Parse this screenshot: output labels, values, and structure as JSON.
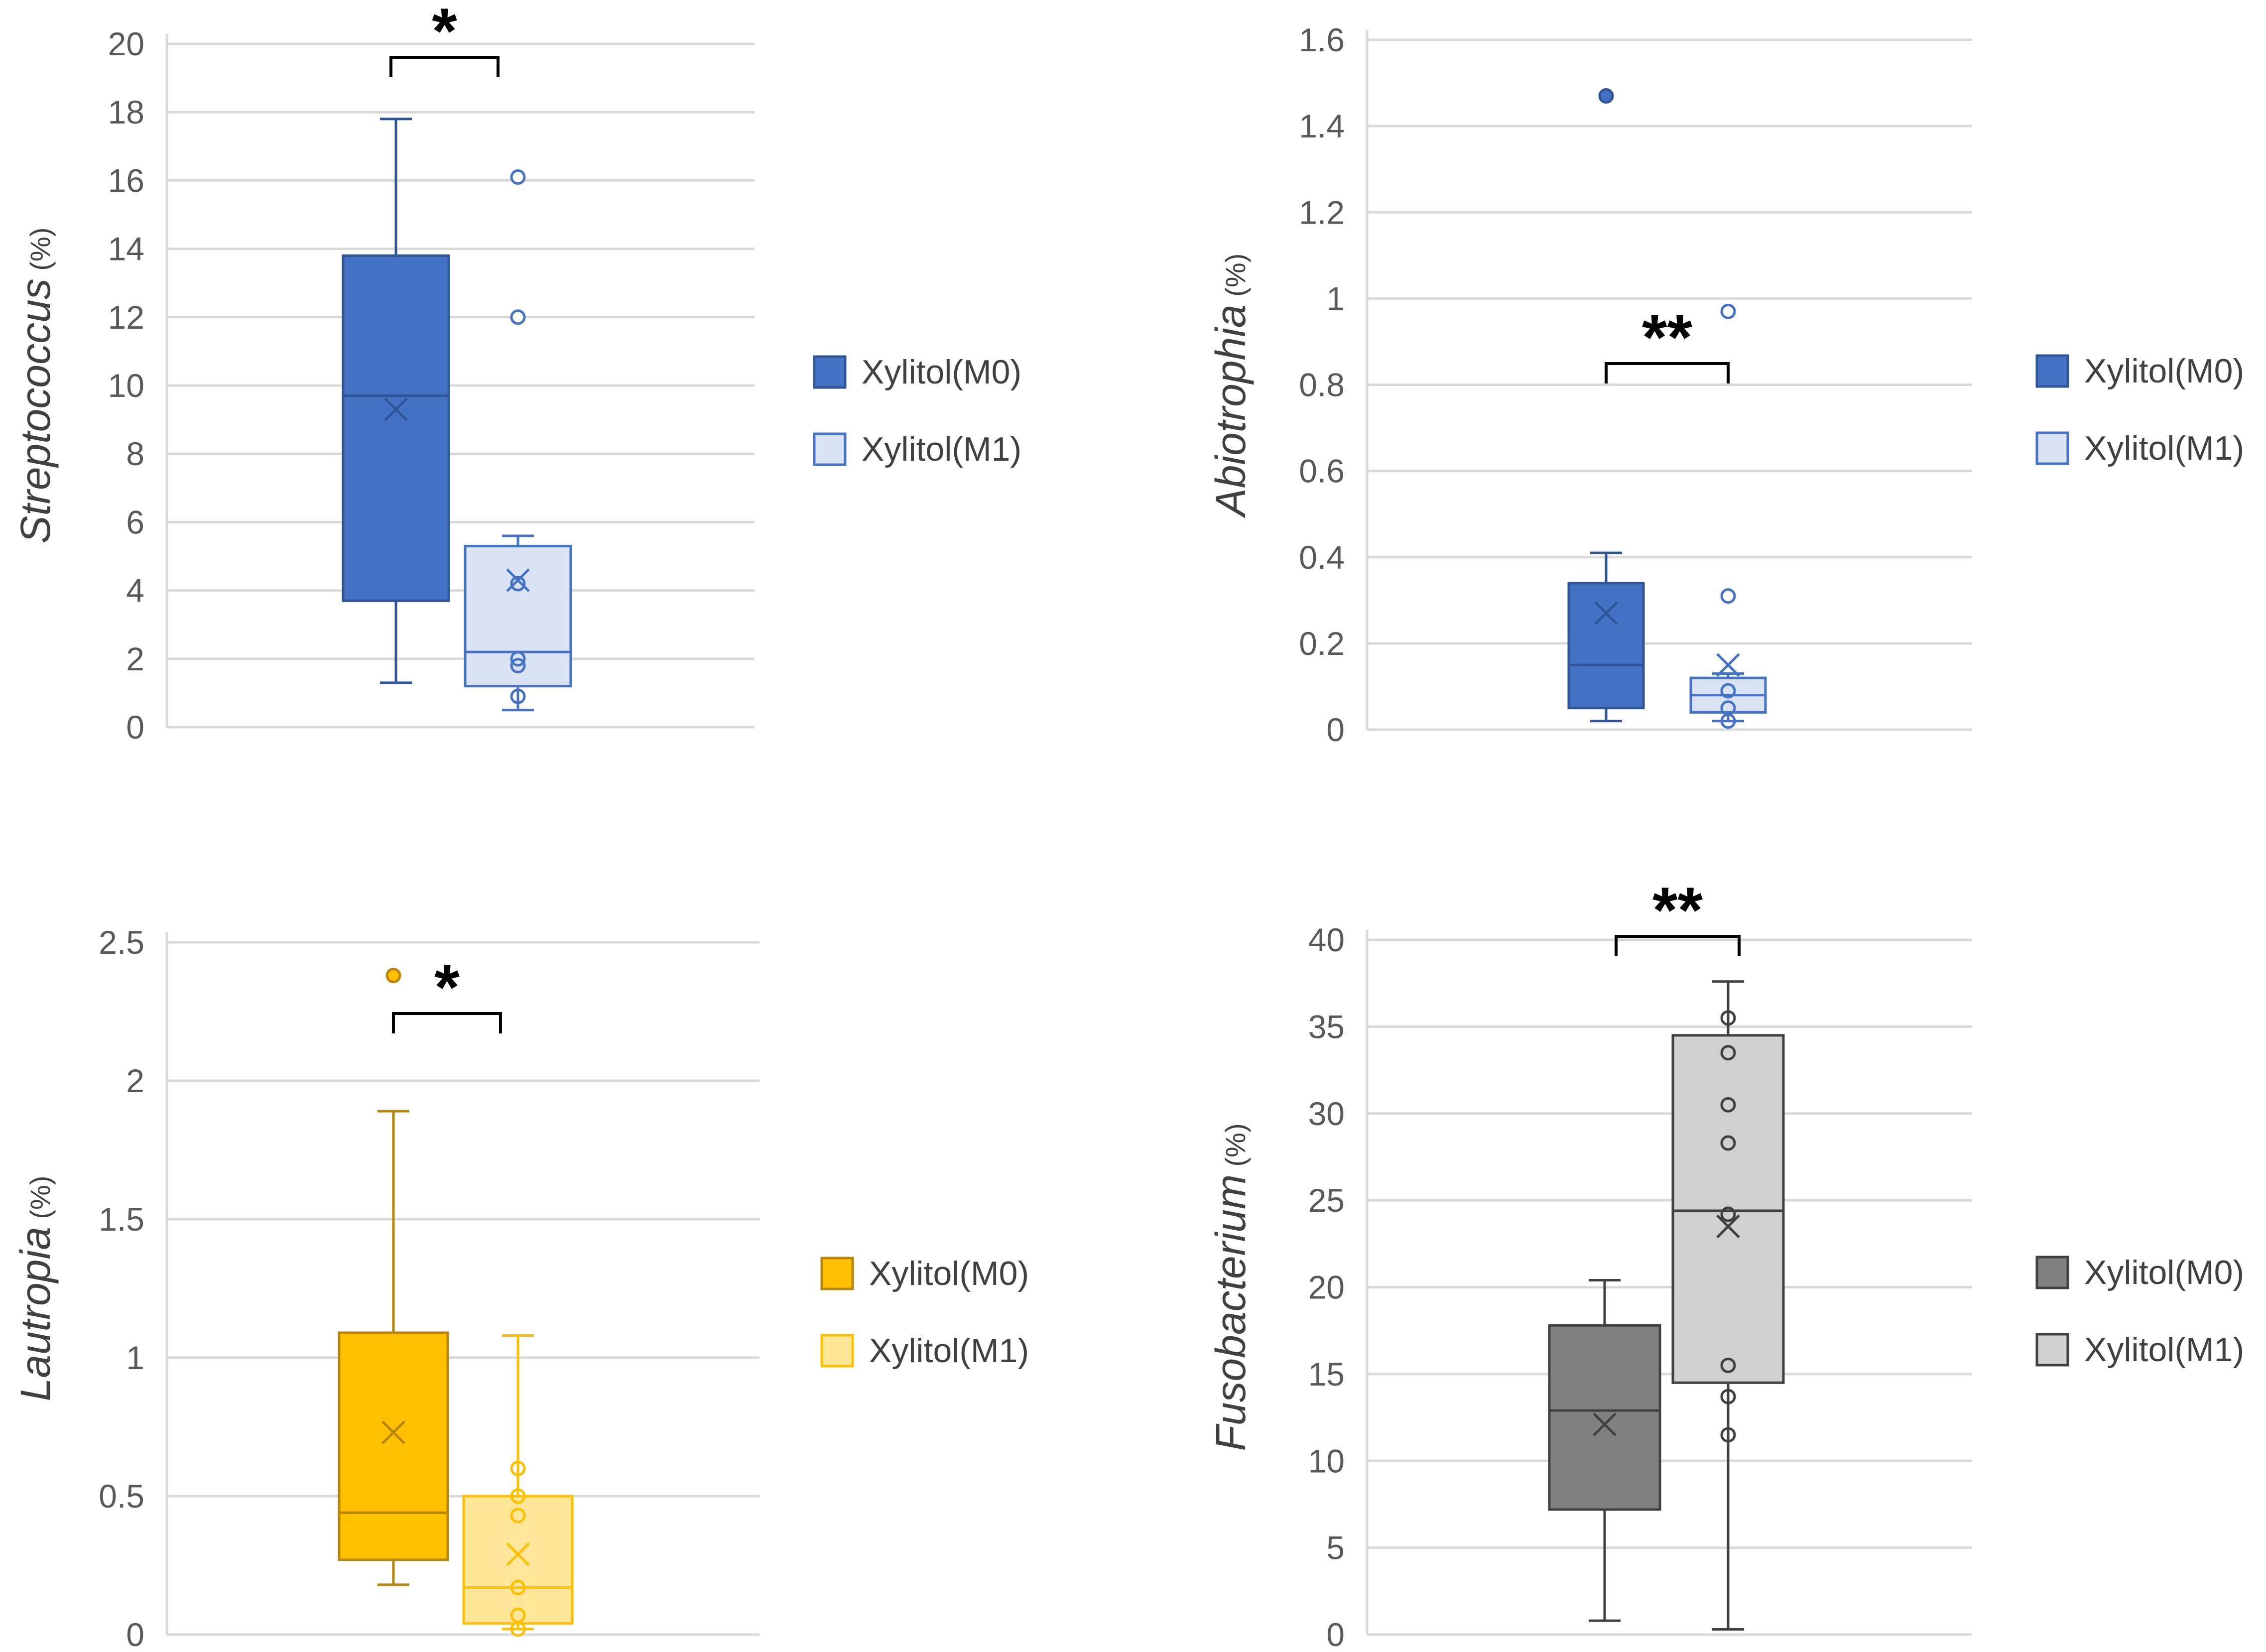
{
  "chart_data": [
    {
      "type": "box",
      "ylabel_genus": "Streptococcus",
      "ylabel_unit": "(%)",
      "ylim": [
        0,
        20
      ],
      "yticks": [
        0,
        2,
        4,
        6,
        8,
        10,
        12,
        14,
        16,
        18,
        20
      ],
      "ytick_labels": [
        "0",
        "2",
        "4",
        "6",
        "8",
        "10",
        "12",
        "14",
        "16",
        "18",
        "20"
      ],
      "colors": {
        "M0_fill": "#4472C4",
        "M0_line": "#2F5597",
        "M1_fill": "#DAE3F3",
        "M1_line": "#4472C4"
      },
      "series": [
        {
          "name": "Xylitol(M0)",
          "min": 1.3,
          "q1": 3.7,
          "median": 9.7,
          "q3": 13.8,
          "max": 17.8,
          "mean": 9.3,
          "outliers": []
        },
        {
          "name": "Xylitol(M1)",
          "min": 0.5,
          "q1": 1.2,
          "median": 2.2,
          "q3": 5.3,
          "max": 5.6,
          "mean": 4.3,
          "outliers": [
            16.1,
            12.0
          ],
          "points": [
            4.2,
            2.0,
            1.8,
            0.9
          ]
        }
      ],
      "significance": "*",
      "legend": [
        "Xylitol(M0)",
        "Xylitol(M1)"
      ],
      "legend_position": "right"
    },
    {
      "type": "box",
      "ylabel_genus": "Abiotrophia",
      "ylabel_unit": "(%)",
      "ylim": [
        0,
        1.6
      ],
      "yticks": [
        0,
        0.2,
        0.4,
        0.6,
        0.8,
        1.0,
        1.2,
        1.4,
        1.6
      ],
      "ytick_labels": [
        "0",
        "0.2",
        "0.4",
        "0.6",
        "0.8",
        "1",
        "1.2",
        "1.4",
        "1.6"
      ],
      "colors": {
        "M0_fill": "#4472C4",
        "M0_line": "#2F5597",
        "M1_fill": "#DAE3F3",
        "M1_line": "#4472C4"
      },
      "series": [
        {
          "name": "Xylitol(M0)",
          "min": 0.02,
          "q1": 0.05,
          "median": 0.15,
          "q3": 0.34,
          "max": 0.41,
          "mean": 0.27,
          "outliers": [
            1.47
          ]
        },
        {
          "name": "Xylitol(M1)",
          "min": 0.02,
          "q1": 0.04,
          "median": 0.08,
          "q3": 0.12,
          "max": 0.13,
          "mean": 0.15,
          "outliers": [
            0.97,
            0.31
          ],
          "points": [
            0.09,
            0.05,
            0.02
          ]
        }
      ],
      "significance": "**",
      "legend": [
        "Xylitol(M0)",
        "Xylitol(M1)"
      ],
      "legend_position": "right"
    },
    {
      "type": "box",
      "ylabel_genus": "Lautropia",
      "ylabel_unit": "(%)",
      "ylim": [
        0,
        2.5
      ],
      "yticks": [
        0,
        0.5,
        1.0,
        1.5,
        2.0,
        2.5
      ],
      "ytick_labels": [
        "0",
        "0.5",
        "1",
        "1.5",
        "2",
        "2.5"
      ],
      "colors": {
        "M0_fill": "#FFC000",
        "M0_line": "#B8860B",
        "M1_fill": "#FFE699",
        "M1_line": "#FFC000"
      },
      "series": [
        {
          "name": "Xylitol(M0)",
          "min": 0.18,
          "q1": 0.27,
          "median": 0.44,
          "q3": 1.09,
          "max": 1.89,
          "mean": 0.73,
          "outliers": [
            2.38
          ]
        },
        {
          "name": "Xylitol(M1)",
          "min": 0.02,
          "q1": 0.04,
          "median": 0.17,
          "q3": 0.5,
          "max": 1.08,
          "mean": 0.29,
          "outliers": [],
          "points": [
            0.6,
            0.5,
            0.43,
            0.17,
            0.07,
            0.02
          ]
        }
      ],
      "significance": "*",
      "legend": [
        "Xylitol(M0)",
        "Xylitol(M1)"
      ],
      "legend_position": "right"
    },
    {
      "type": "box",
      "ylabel_genus": "Fusobacterium",
      "ylabel_unit": "(%)",
      "ylim": [
        0,
        40
      ],
      "yticks": [
        0,
        5,
        10,
        15,
        20,
        25,
        30,
        35,
        40
      ],
      "ytick_labels": [
        "0",
        "5",
        "10",
        "15",
        "20",
        "25",
        "30",
        "35",
        "40"
      ],
      "colors": {
        "M0_fill": "#808080",
        "M0_line": "#404040",
        "M1_fill": "#D0D0D0",
        "M1_line": "#404040"
      },
      "series": [
        {
          "name": "Xylitol(M0)",
          "min": 0.8,
          "q1": 7.2,
          "median": 12.9,
          "q3": 17.8,
          "max": 20.4,
          "mean": 12.1,
          "outliers": []
        },
        {
          "name": "Xylitol(M1)",
          "min": 0.3,
          "q1": 14.5,
          "median": 24.4,
          "q3": 34.5,
          "max": 37.6,
          "mean": 23.5,
          "outliers": [],
          "points": [
            35.5,
            33.5,
            30.5,
            28.3,
            24.2,
            15.5,
            13.7,
            11.5
          ]
        }
      ],
      "significance": "**",
      "legend": [
        "Xylitol(M0)",
        "Xylitol(M1)"
      ],
      "legend_position": "right"
    }
  ]
}
